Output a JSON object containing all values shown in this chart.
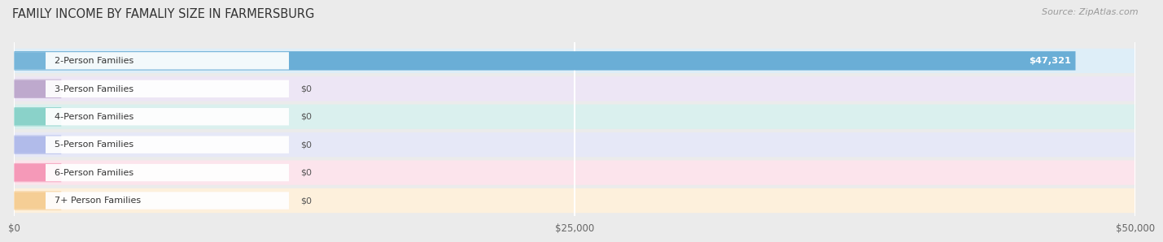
{
  "title": "FAMILY INCOME BY FAMALIY SIZE IN FARMERSBURG",
  "source": "Source: ZipAtlas.com",
  "categories": [
    "2-Person Families",
    "3-Person Families",
    "4-Person Families",
    "5-Person Families",
    "6-Person Families",
    "7+ Person Families"
  ],
  "values": [
    47321,
    0,
    0,
    0,
    0,
    0
  ],
  "bar_colors": [
    "#6aaed6",
    "#b8a0c8",
    "#7ecec4",
    "#aab4e8",
    "#f48fb1",
    "#f5c98a"
  ],
  "row_bg_colors": [
    "#deeef8",
    "#ede6f5",
    "#daf0ee",
    "#e6e8f7",
    "#fce4ec",
    "#fdf0dc"
  ],
  "value_labels": [
    "$47,321",
    "$0",
    "$0",
    "$0",
    "$0",
    "$0"
  ],
  "xlim": [
    0,
    50000
  ],
  "xticks": [
    0,
    25000,
    50000
  ],
  "xtick_labels": [
    "$0",
    "$25,000",
    "$50,000"
  ],
  "background_color": "#ebebeb",
  "title_fontsize": 10.5,
  "source_fontsize": 8
}
